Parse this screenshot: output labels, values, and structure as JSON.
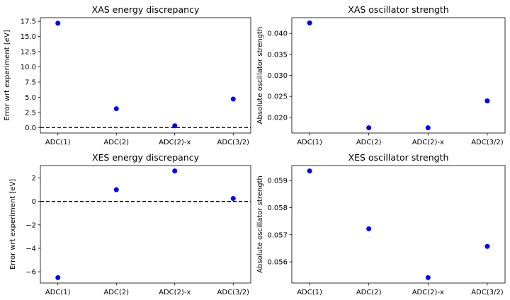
{
  "chart_data": [
    {
      "type": "scatter",
      "title": "XAS energy discrepancy",
      "xlabel": "",
      "ylabel": "Error wrt experiment [eV]",
      "categories": [
        "ADC(1)",
        "ADC(2)",
        "ADC(2)-x",
        "ADC(3/2)"
      ],
      "values": [
        17.2,
        3.1,
        0.3,
        4.7
      ],
      "yticks": [
        "0.0",
        "2.5",
        "5.0",
        "7.5",
        "10.0",
        "12.5",
        "15.0",
        "17.5"
      ],
      "ylim": [
        -0.9,
        18.1
      ],
      "reference_line": 0,
      "grid": false,
      "marker_color": "#0000ff"
    },
    {
      "type": "scatter",
      "title": "XAS oscillator strength",
      "xlabel": "",
      "ylabel": "Absolute oscillator strength",
      "categories": [
        "ADC(1)",
        "ADC(2)",
        "ADC(2)-x",
        "ADC(3/2)"
      ],
      "values": [
        0.0425,
        0.0175,
        0.0175,
        0.0239
      ],
      "yticks": [
        "0.020",
        "0.025",
        "0.030",
        "0.035",
        "0.040"
      ],
      "ylim": [
        0.01625,
        0.04375
      ],
      "grid": false,
      "marker_color": "#0000ff"
    },
    {
      "type": "scatter",
      "title": "XES energy discrepancy",
      "xlabel": "",
      "ylabel": "Error wrt experiment [eV]",
      "categories": [
        "ADC(1)",
        "ADC(2)",
        "ADC(2)-x",
        "ADC(3/2)"
      ],
      "values": [
        -6.5,
        1.0,
        2.6,
        0.25
      ],
      "yticks": [
        "−6",
        "−4",
        "−2",
        "0",
        "2"
      ],
      "ylim": [
        -6.96,
        3.06
      ],
      "reference_line": 0,
      "grid": false,
      "marker_color": "#0000ff"
    },
    {
      "type": "scatter",
      "title": "XES oscillator strength",
      "xlabel": "",
      "ylabel": "Absolute oscillator strength",
      "categories": [
        "ADC(1)",
        "ADC(2)",
        "ADC(2)-x",
        "ADC(3/2)"
      ],
      "values": [
        0.05935,
        0.05722,
        0.05542,
        0.05657
      ],
      "yticks": [
        "0.056",
        "0.057",
        "0.058",
        "0.059"
      ],
      "ylim": [
        0.05522,
        0.05955
      ],
      "grid": false,
      "marker_color": "#0000ff"
    }
  ]
}
